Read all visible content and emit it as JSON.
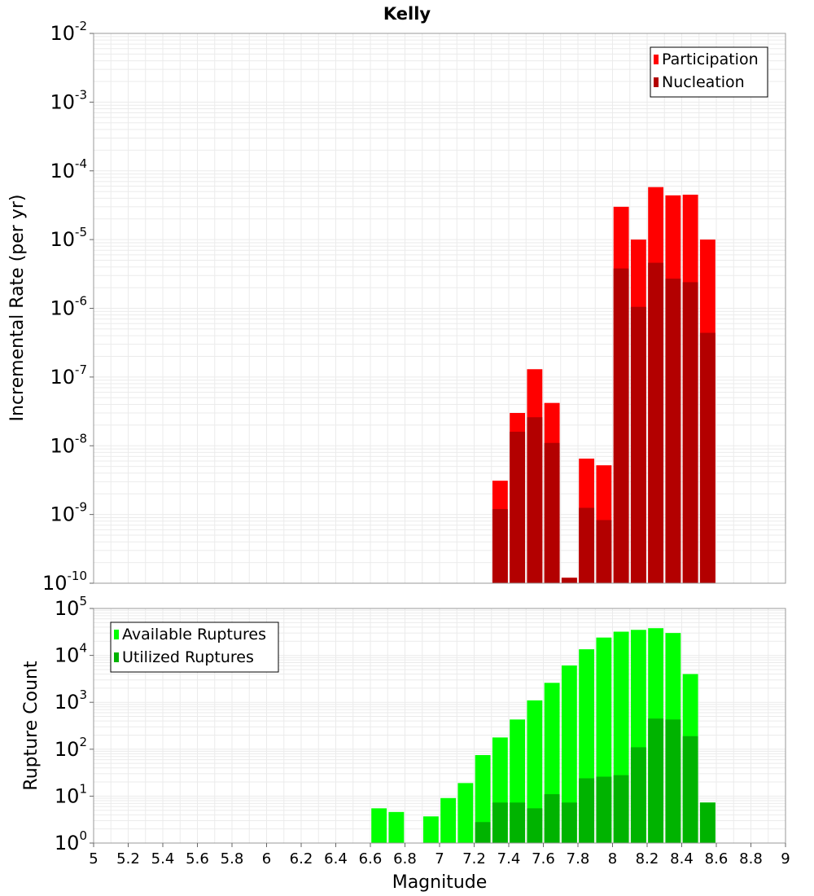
{
  "chart_data": [
    {
      "type": "bar",
      "title": "Kelly",
      "ylabel": "Incremental Rate (per yr)",
      "xlabel": "",
      "yscale": "log",
      "ylim": [
        1e-10,
        0.01
      ],
      "xlim": [
        5,
        9
      ],
      "y_tick_exponents": [
        "-2",
        "-3",
        "-4",
        "-5",
        "-6",
        "-7",
        "-8",
        "-9",
        "-10"
      ],
      "bin_width": 0.1,
      "grid": true,
      "legend_position": "top-right",
      "overlay": true,
      "series": [
        {
          "name": "Participation",
          "color": "#ff0000",
          "x": [
            7.35,
            7.45,
            7.55,
            7.65,
            7.75,
            7.85,
            7.95,
            8.05,
            8.15,
            8.25,
            8.35,
            8.45,
            8.55
          ],
          "values": [
            3.1e-09,
            3e-08,
            1.3e-07,
            4.2e-08,
            1.2e-10,
            6.5e-09,
            5.2e-09,
            3e-05,
            1e-05,
            5.8e-05,
            4.4e-05,
            4.5e-05,
            1e-05
          ]
        },
        {
          "name": "Nucleation",
          "color": "#b30000",
          "x": [
            7.35,
            7.45,
            7.55,
            7.65,
            7.75,
            7.85,
            7.95,
            8.05,
            8.15,
            8.25,
            8.35,
            8.45,
            8.55
          ],
          "values": [
            1.2e-09,
            1.6e-08,
            2.6e-08,
            1.1e-08,
            1.2e-10,
            1.25e-09,
            8.3e-10,
            3.8e-06,
            1.05e-06,
            4.6e-06,
            2.7e-06,
            2.4e-06,
            4.4e-07
          ]
        }
      ]
    },
    {
      "type": "bar",
      "title": "",
      "ylabel": "Rupture Count",
      "xlabel": "Magnitude",
      "yscale": "log",
      "ylim": [
        1,
        100000.0
      ],
      "xlim": [
        5,
        9
      ],
      "x_ticks": [
        "5",
        "5.2",
        "5.4",
        "5.6",
        "5.8",
        "6",
        "6.2",
        "6.4",
        "6.6",
        "6.8",
        "7",
        "7.2",
        "7.4",
        "7.6",
        "7.8",
        "8",
        "8.2",
        "8.4",
        "8.6",
        "8.8",
        "9"
      ],
      "y_tick_exponents": [
        "5",
        "4",
        "3",
        "2",
        "1",
        "0"
      ],
      "bin_width": 0.1,
      "grid": true,
      "legend_position": "top-left",
      "overlay": true,
      "series": [
        {
          "name": "Available Ruptures",
          "color": "#00ff00",
          "x": [
            6.65,
            6.75,
            6.95,
            7.05,
            7.15,
            7.25,
            7.35,
            7.45,
            7.55,
            7.65,
            7.75,
            7.85,
            7.95,
            8.05,
            8.15,
            8.25,
            8.35,
            8.45,
            8.55
          ],
          "values": [
            5.5,
            4.6,
            3.7,
            9.1,
            19,
            75,
            178,
            430,
            1100,
            2600,
            6100,
            13500,
            24000,
            32000,
            35000,
            38000,
            30000,
            4000,
            7.3
          ]
        },
        {
          "name": "Utilized Ruptures",
          "color": "#00b300",
          "x": [
            7.25,
            7.35,
            7.45,
            7.55,
            7.65,
            7.75,
            7.85,
            7.95,
            8.05,
            8.15,
            8.25,
            8.35,
            8.45,
            8.55
          ],
          "values": [
            2.8,
            7.3,
            7.3,
            5.5,
            11,
            7.3,
            24,
            26,
            28,
            110,
            450,
            430,
            190,
            7.3
          ]
        }
      ]
    }
  ]
}
